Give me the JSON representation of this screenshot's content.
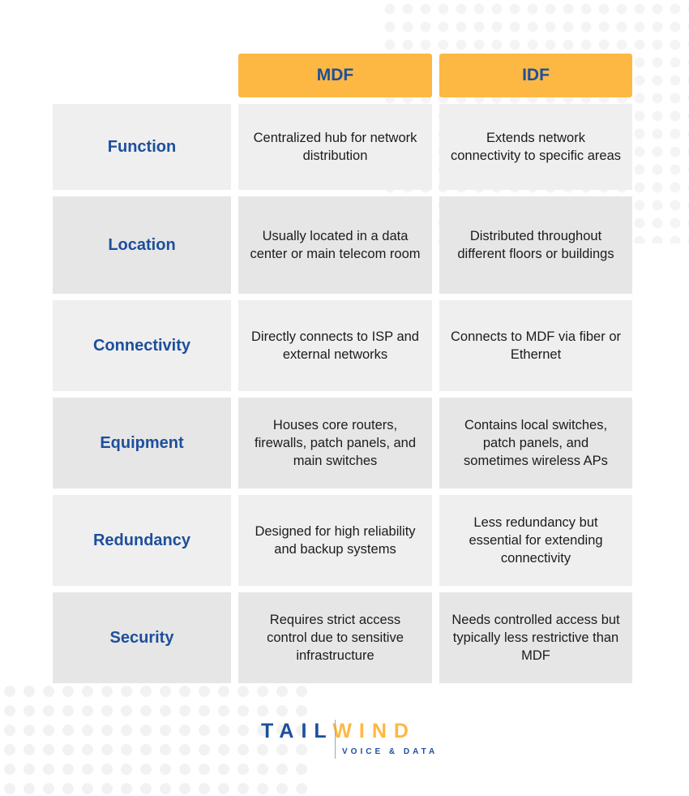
{
  "colors": {
    "header_bg": "#fdb843",
    "label_text": "#1d4f9c",
    "row_light": "#efefef",
    "row_dark": "#e6e6e6"
  },
  "headers": [
    "MDF",
    "IDF"
  ],
  "rows": [
    {
      "label": "Function",
      "mdf": "Centralized hub for network distribution",
      "idf": "Extends network connectivity to specific areas"
    },
    {
      "label": "Location",
      "mdf": "Usually located in a data center or main telecom room",
      "idf": "Distributed throughout different floors or buildings"
    },
    {
      "label": "Connectivity",
      "mdf": "Directly connects to ISP and external networks",
      "idf": "Connects to MDF via fiber or Ethernet"
    },
    {
      "label": "Equipment",
      "mdf": "Houses core routers, firewalls, patch panels, and main switches",
      "idf": "Contains local switches, patch panels, and sometimes wireless APs"
    },
    {
      "label": "Redundancy",
      "mdf": "Designed for high reliability and backup systems",
      "idf": "Less redundancy but essential for extending connectivity"
    },
    {
      "label": "Security",
      "mdf": "Requires strict access control due to sensitive infrastructure",
      "idf": "Needs controlled access but typically less restrictive than MDF"
    }
  ],
  "logo": {
    "part1": "TAIL",
    "part2": "WIND",
    "tagline": "VOICE & DATA"
  }
}
